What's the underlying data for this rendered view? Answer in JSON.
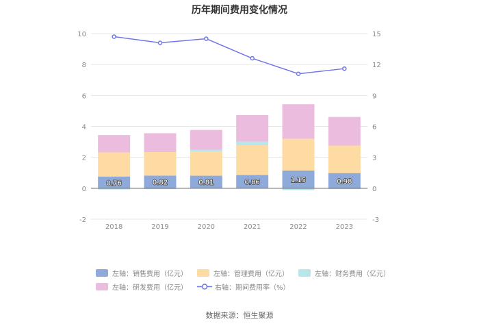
{
  "chart_data": {
    "type": "bar",
    "title": "历年期间费用变化情况",
    "categories": [
      "2018",
      "2019",
      "2020",
      "2021",
      "2022",
      "2023"
    ],
    "stacked": true,
    "left_axis": {
      "ylim": [
        -2,
        10
      ],
      "ticks": [
        "-2",
        "0",
        "2",
        "4",
        "6",
        "8",
        "10"
      ]
    },
    "right_axis": {
      "ylim": [
        -3,
        15
      ],
      "ticks": [
        "-3",
        "0",
        "3",
        "6",
        "9",
        "12",
        "15"
      ]
    },
    "series": [
      {
        "name": "左轴：销售费用（亿元）",
        "axis": "left",
        "color": "#8eaadb",
        "values": [
          0.76,
          0.82,
          0.81,
          0.86,
          1.15,
          0.98
        ],
        "labels": [
          "0.76",
          "0.82",
          "0.81",
          "0.86",
          "1.15",
          "0.98"
        ]
      },
      {
        "name": "左轴：管理费用（亿元）",
        "axis": "left",
        "color": "#fedba2",
        "values": [
          1.56,
          1.52,
          1.56,
          1.92,
          2.05,
          1.78
        ]
      },
      {
        "name": "左轴：财务费用（亿元）",
        "axis": "left",
        "color": "#b6e7ea",
        "values": [
          -0.08,
          -0.06,
          0.12,
          0.24,
          -0.12,
          -0.06
        ]
      },
      {
        "name": "左轴：研发费用（亿元）",
        "axis": "left",
        "color": "#ebbcdd",
        "values": [
          1.12,
          1.22,
          1.28,
          1.71,
          2.23,
          1.85
        ]
      },
      {
        "name": "右轴：期间费用率（%）",
        "axis": "right",
        "type": "line",
        "color": "#6f76e6",
        "values": [
          14.7,
          14.1,
          14.5,
          12.6,
          11.1,
          11.6
        ]
      }
    ]
  },
  "source": "数据来源：恒生聚源"
}
